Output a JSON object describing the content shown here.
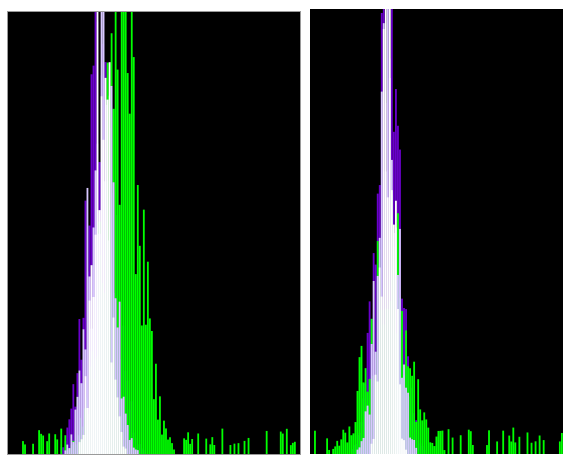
{
  "app": {
    "background": "#ffffff",
    "panel_background": "#000000"
  },
  "chart_data": [
    {
      "type": "bar",
      "title": "",
      "xlabel": "",
      "ylabel": "",
      "xlim": [
        0,
        145
      ],
      "ylim": [
        0,
        100
      ],
      "grid": false,
      "legend": "none",
      "bin_center": 46,
      "series": [
        {
          "color": "#6a00cc",
          "sigma": 7,
          "peak": 88,
          "noise": 0.35,
          "floor": 0,
          "seed": 11
        },
        {
          "color": "#00ff00",
          "sigma": 9,
          "peak": 92,
          "noise": 0.45,
          "floor": 4,
          "center_shift": 10,
          "seed": 23
        },
        {
          "color": "#d8c8ff",
          "sigma": 6,
          "peak": 80,
          "noise": 0.5,
          "floor": 0,
          "seed": 37
        },
        {
          "color": "#ffffff",
          "sigma": 4,
          "peak": 98,
          "noise": 0.55,
          "floor": 0,
          "seed": 51
        }
      ]
    },
    {
      "type": "bar",
      "title": "",
      "xlabel": "",
      "ylabel": "",
      "xlim": [
        0,
        125
      ],
      "ylim": [
        0,
        100
      ],
      "grid": false,
      "legend": "none",
      "bin_center": 38,
      "series": [
        {
          "color": "#6a00cc",
          "sigma": 6,
          "peak": 90,
          "noise": 0.3,
          "floor": 0,
          "seed": 61
        },
        {
          "color": "#00ff00",
          "sigma": 10,
          "peak": 40,
          "noise": 0.55,
          "floor": 4,
          "seed": 73
        },
        {
          "color": "#d8c8ff",
          "sigma": 5,
          "peak": 78,
          "noise": 0.5,
          "floor": 0,
          "seed": 89
        },
        {
          "color": "#ffffff",
          "sigma": 3,
          "peak": 98,
          "noise": 0.55,
          "floor": 0,
          "seed": 97
        }
      ]
    }
  ]
}
